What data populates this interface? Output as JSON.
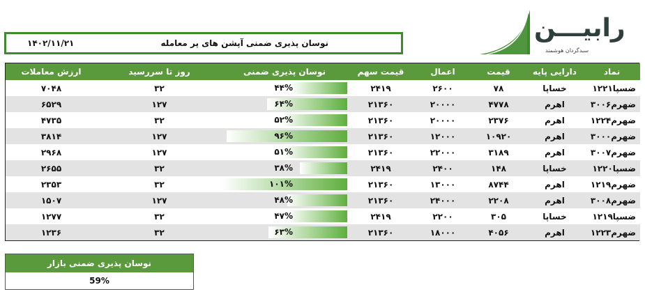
{
  "header": {
    "title": "نوسان پذیری ضمنی  آپشن های  پر معامله",
    "date": "۱۴۰۲/۱۱/۲۱"
  },
  "logo": {
    "main": "رابیـــن",
    "sub": "سبدگردان هوشمند",
    "accent_color": "#3d8b2c"
  },
  "table": {
    "columns": [
      "نماد",
      "دارایی پایه",
      "قیمت",
      "اعمال",
      "قیمت سهم",
      "نوسان پذیری ضمنی",
      "روز تا سررسید",
      "ارزش معاملات"
    ],
    "rows": [
      {
        "symbol": "ضسپا۱۲۲۱",
        "underlying": "خساپا",
        "price": "۷۸",
        "strike": "۲۶۰۰",
        "stock_price": "۲۴۱۹",
        "iv": "۴۴%",
        "iv_value": 44,
        "days": "۳۲",
        "value": "۷۰۴۸"
      },
      {
        "symbol": "ضهرم۳۰۰۶",
        "underlying": "اهرم",
        "price": "۴۷۷۸",
        "strike": "۲۰۰۰۰",
        "stock_price": "۲۱۳۶۰",
        "iv": "۶۴%",
        "iv_value": 64,
        "days": "۱۲۷",
        "value": "۶۵۲۹"
      },
      {
        "symbol": "ضهرم۱۲۲۴",
        "underlying": "اهرم",
        "price": "۲۳۷۶",
        "strike": "۲۰۰۰۰",
        "stock_price": "۲۱۳۶۰",
        "iv": "۵۲%",
        "iv_value": 52,
        "days": "۳۲",
        "value": "۴۷۳۵"
      },
      {
        "symbol": "ضهرم۳۰۰۰",
        "underlying": "اهرم",
        "price": "۱۰۹۲۰",
        "strike": "۱۲۰۰۰",
        "stock_price": "۲۱۳۶۰",
        "iv": "۹۶%",
        "iv_value": 96,
        "days": "۱۲۷",
        "value": "۳۸۱۴"
      },
      {
        "symbol": "ضهرم۳۰۰۷",
        "underlying": "اهرم",
        "price": "۳۱۸۹",
        "strike": "۲۲۰۰۰",
        "stock_price": "۲۱۳۶۰",
        "iv": "۵۱%",
        "iv_value": 51,
        "days": "۱۲۷",
        "value": "۲۹۶۸"
      },
      {
        "symbol": "ضسپا۱۲۲۰",
        "underlying": "خساپا",
        "price": "۱۴۸",
        "strike": "۲۴۰۰",
        "stock_price": "۲۴۱۹",
        "iv": "۳۸%",
        "iv_value": 38,
        "days": "۳۲",
        "value": "۲۶۵۵"
      },
      {
        "symbol": "ضهرم۱۲۱۹",
        "underlying": "اهرم",
        "price": "۸۷۴۴",
        "strike": "۱۳۰۰۰",
        "stock_price": "۲۱۳۶۰",
        "iv": "۱۰۱%",
        "iv_value": 101,
        "days": "۳۲",
        "value": "۲۳۵۳"
      },
      {
        "symbol": "ضهرم۳۰۰۸",
        "underlying": "اهرم",
        "price": "۲۲۰۸",
        "strike": "۲۴۰۰۰",
        "stock_price": "۲۱۳۶۰",
        "iv": "۴۸%",
        "iv_value": 48,
        "days": "۱۲۷",
        "value": "۱۵۰۷"
      },
      {
        "symbol": "ضسپا۱۲۱۹",
        "underlying": "خساپا",
        "price": "۳۰۵",
        "strike": "۲۲۰۰",
        "stock_price": "۲۴۱۹",
        "iv": "۴۷%",
        "iv_value": 47,
        "days": "۳۲",
        "value": "۱۲۷۷"
      },
      {
        "symbol": "ضهرم۱۲۲۳",
        "underlying": "اهرم",
        "price": "۴۰۵۶",
        "strike": "۱۸۰۰۰",
        "stock_price": "۲۱۳۶۰",
        "iv": "۶۳%",
        "iv_value": 63,
        "days": "۳۲",
        "value": "۱۲۳۶"
      }
    ]
  },
  "market": {
    "label": "نوسان پذیری ضمنی بازار",
    "value": "59%"
  }
}
